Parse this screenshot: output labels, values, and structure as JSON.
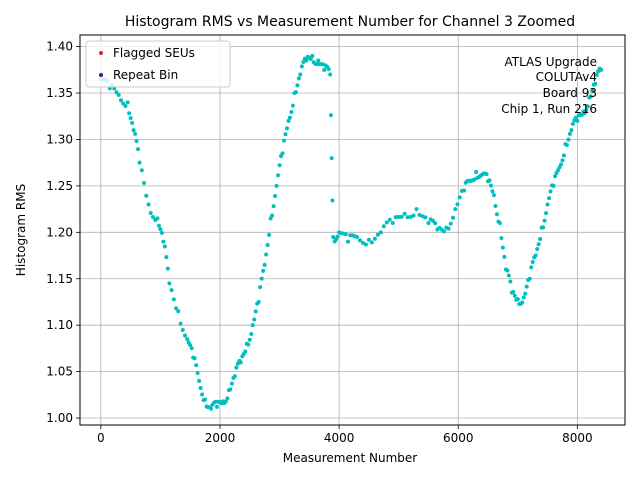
{
  "chart_data": {
    "type": "scatter",
    "title": "Histogram RMS vs Measurement Number for Channel 3 Zoomed",
    "xlabel": "Measurement Number",
    "ylabel": "Histogram RMS",
    "xlim": [
      -350,
      8800
    ],
    "ylim": [
      0.9925,
      1.4125
    ],
    "xticks": [
      0,
      2000,
      4000,
      6000,
      8000
    ],
    "xtick_labels": [
      "0",
      "2000",
      "4000",
      "6000",
      "8000"
    ],
    "yticks": [
      1.0,
      1.05,
      1.1,
      1.15,
      1.2,
      1.25,
      1.3,
      1.35,
      1.4
    ],
    "ytick_labels": [
      "1.00",
      "1.05",
      "1.10",
      "1.15",
      "1.20",
      "1.25",
      "1.30",
      "1.35",
      "1.40"
    ],
    "grid": true,
    "legend": {
      "placement": "top-left",
      "entries": [
        {
          "label": "Flagged SEUs",
          "color": "#d62728"
        },
        {
          "label": "Repeat Bin",
          "color": "#3d1a8c"
        }
      ]
    },
    "annotation": {
      "placement": "top-right",
      "lines": [
        "ATLAS Upgrade",
        "COLUTAv4",
        "Board 93",
        "Chip 1, Run 216"
      ]
    },
    "series": [
      {
        "name": "Histogram RMS",
        "color": "#00bfbf",
        "x": [
          0,
          150,
          300,
          450,
          550,
          650,
          800,
          950,
          1050,
          1150,
          1300,
          1450,
          1550,
          1650,
          1750,
          1850,
          1950,
          2050,
          2150,
          2250,
          2350,
          2450,
          2550,
          2650,
          2750,
          2850,
          2950,
          3050,
          3150,
          3250,
          3350,
          3450,
          3550,
          3650,
          3750,
          3850,
          3900,
          4000,
          4150,
          4300,
          4500,
          4700,
          4900,
          5100,
          5300,
          5500,
          5650,
          5800,
          5950,
          6100,
          6200,
          6300,
          6400,
          6500,
          6600,
          6700,
          6800,
          6900,
          7000,
          7100,
          7200,
          7300,
          7400,
          7500,
          7600,
          7700,
          7800,
          7900,
          8000,
          8100,
          8200,
          8300,
          8400
        ],
        "y": [
          1.365,
          1.355,
          1.348,
          1.34,
          1.31,
          1.275,
          1.23,
          1.215,
          1.19,
          1.145,
          1.115,
          1.085,
          1.065,
          1.04,
          1.02,
          1.01,
          1.012,
          1.018,
          1.03,
          1.045,
          1.06,
          1.08,
          1.1,
          1.125,
          1.165,
          1.215,
          1.25,
          1.285,
          1.32,
          1.35,
          1.37,
          1.385,
          1.39,
          1.385,
          1.375,
          1.37,
          1.195,
          1.2,
          1.19,
          1.195,
          1.192,
          1.2,
          1.21,
          1.22,
          1.225,
          1.21,
          1.203,
          1.205,
          1.225,
          1.245,
          1.255,
          1.265,
          1.262,
          1.255,
          1.24,
          1.21,
          1.16,
          1.135,
          1.128,
          1.13,
          1.15,
          1.175,
          1.205,
          1.23,
          1.25,
          1.27,
          1.295,
          1.31,
          1.32,
          1.33,
          1.345,
          1.36,
          1.375
        ]
      }
    ]
  }
}
